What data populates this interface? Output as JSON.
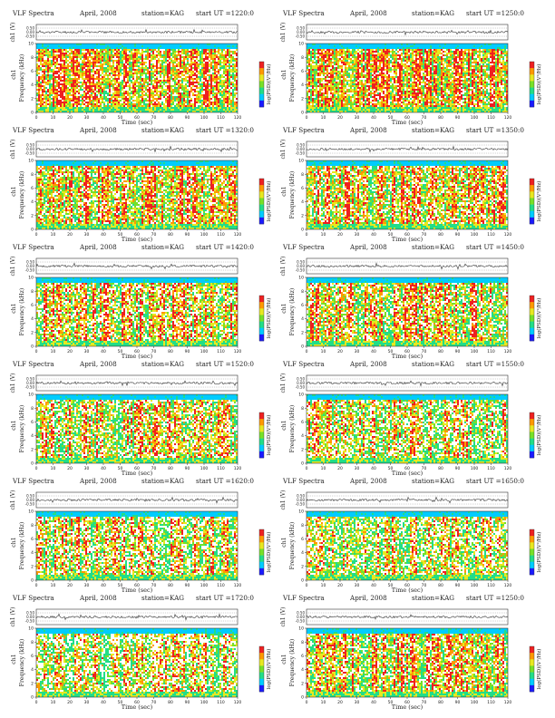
{
  "panel_header": {
    "title": "VLF Spectra",
    "date": "April, 2008",
    "station": "station=KAG",
    "start_prefix": "start UT ="
  },
  "labels": {
    "ch_axis": "ch1 (V)",
    "freq_axis": "Frequency (kHz)",
    "freq_axis_prefix": "ch1",
    "time_axis": "Time (sec)",
    "colorbar": "log(PSD)(V²/Hz)"
  },
  "colors": {
    "colormap": [
      "#1a1aff",
      "#00ccff",
      "#22dd88",
      "#77e028",
      "#e8e820",
      "#ff9900",
      "#ee2020"
    ],
    "background": "#ffffff",
    "trace": "#333333"
  },
  "chart_data": [
    {
      "type": "heatmap",
      "start_ut": "1220:0",
      "x_ticks": [
        0,
        10,
        20,
        30,
        40,
        50,
        60,
        70,
        80,
        90,
        100,
        110,
        120
      ],
      "xlim": [
        0,
        120
      ],
      "y_ticks": [
        0,
        2,
        4,
        6,
        8,
        10
      ],
      "ylim": [
        0,
        10
      ],
      "ch_ticks": [
        "0.50",
        "0.00",
        "-0.50"
      ],
      "ch_ylim": [
        -0.5,
        0.5
      ],
      "mean_intensity": 0.78,
      "density": 0.8
    },
    {
      "type": "heatmap",
      "start_ut": "1250:0",
      "x_ticks": [
        0,
        10,
        20,
        30,
        40,
        50,
        60,
        70,
        80,
        90,
        100,
        110,
        120
      ],
      "xlim": [
        0,
        120
      ],
      "y_ticks": [
        0,
        2,
        4,
        6,
        8,
        10
      ],
      "ylim": [
        0,
        10
      ],
      "ch_ticks": [
        "0.50",
        "0.00",
        "-0.50"
      ],
      "ch_ylim": [
        -0.5,
        0.5
      ],
      "mean_intensity": 0.77,
      "density": 0.82
    },
    {
      "type": "heatmap",
      "start_ut": "1320:0",
      "x_ticks": [
        0,
        10,
        20,
        30,
        40,
        50,
        60,
        70,
        80,
        90,
        100,
        110,
        120
      ],
      "xlim": [
        0,
        120
      ],
      "y_ticks": [
        0,
        2,
        4,
        6,
        8,
        10
      ],
      "ylim": [
        0,
        10
      ],
      "ch_ticks": [
        "0.50",
        "0.00",
        "-0.50"
      ],
      "ch_ylim": [
        -0.5,
        0.5
      ],
      "mean_intensity": 0.72,
      "density": 0.78
    },
    {
      "type": "heatmap",
      "start_ut": "1350:0",
      "x_ticks": [
        0,
        10,
        20,
        30,
        40,
        50,
        60,
        70,
        80,
        90,
        100,
        110,
        120
      ],
      "xlim": [
        0,
        120
      ],
      "y_ticks": [
        0,
        2,
        4,
        6,
        8,
        10
      ],
      "ylim": [
        0,
        10
      ],
      "ch_ticks": [
        "0.50",
        "0.00",
        "-0.50"
      ],
      "ch_ylim": [
        -0.5,
        0.5
      ],
      "mean_intensity": 0.7,
      "density": 0.76
    },
    {
      "type": "heatmap",
      "start_ut": "1420:0",
      "x_ticks": [
        0,
        10,
        20,
        30,
        40,
        50,
        60,
        70,
        80,
        90,
        100,
        110,
        120
      ],
      "xlim": [
        0,
        120
      ],
      "y_ticks": [
        0,
        2,
        4,
        6,
        8,
        10
      ],
      "ylim": [
        0,
        10
      ],
      "ch_ticks": [
        "0.50",
        "0.00",
        "-0.50"
      ],
      "ch_ylim": [
        -0.5,
        0.5
      ],
      "mean_intensity": 0.66,
      "density": 0.72
    },
    {
      "type": "heatmap",
      "start_ut": "1450:0",
      "x_ticks": [
        0,
        10,
        20,
        30,
        40,
        50,
        60,
        70,
        80,
        90,
        100,
        110,
        120
      ],
      "xlim": [
        0,
        120
      ],
      "y_ticks": [
        0,
        2,
        4,
        6,
        8,
        10
      ],
      "ylim": [
        0,
        10
      ],
      "ch_ticks": [
        "0.50",
        "0.00",
        "-0.50"
      ],
      "ch_ylim": [
        -0.5,
        0.5
      ],
      "mean_intensity": 0.68,
      "density": 0.75
    },
    {
      "type": "heatmap",
      "start_ut": "1520:0",
      "x_ticks": [
        0,
        10,
        20,
        30,
        40,
        50,
        60,
        70,
        80,
        90,
        100,
        110,
        120
      ],
      "xlim": [
        0,
        120
      ],
      "y_ticks": [
        0,
        2,
        4,
        6,
        8,
        10
      ],
      "ylim": [
        0,
        10
      ],
      "ch_ticks": [
        "0.50",
        "0.00",
        "-0.50"
      ],
      "ch_ylim": [
        -0.5,
        0.5
      ],
      "mean_intensity": 0.62,
      "density": 0.7
    },
    {
      "type": "heatmap",
      "start_ut": "1550:0",
      "x_ticks": [
        0,
        10,
        20,
        30,
        40,
        50,
        60,
        70,
        80,
        90,
        100,
        110,
        120
      ],
      "xlim": [
        0,
        120
      ],
      "y_ticks": [
        0,
        2,
        4,
        6,
        8,
        10
      ],
      "ylim": [
        0,
        10
      ],
      "ch_ticks": [
        "0.50",
        "0.00",
        "-0.50"
      ],
      "ch_ylim": [
        -0.5,
        0.5
      ],
      "mean_intensity": 0.58,
      "density": 0.68
    },
    {
      "type": "heatmap",
      "start_ut": "1620:0",
      "x_ticks": [
        0,
        10,
        20,
        30,
        40,
        50,
        60,
        70,
        80,
        90,
        100,
        110,
        120
      ],
      "xlim": [
        0,
        120
      ],
      "y_ticks": [
        0,
        2,
        4,
        6,
        8,
        10
      ],
      "ylim": [
        0,
        10
      ],
      "ch_ticks": [
        "0.50",
        "0.00",
        "-0.50"
      ],
      "ch_ylim": [
        -0.5,
        0.5
      ],
      "mean_intensity": 0.55,
      "density": 0.66
    },
    {
      "type": "heatmap",
      "start_ut": "1650:0",
      "x_ticks": [
        0,
        10,
        20,
        30,
        40,
        50,
        60,
        70,
        80,
        90,
        100,
        110,
        120
      ],
      "xlim": [
        0,
        120
      ],
      "y_ticks": [
        0,
        2,
        4,
        6,
        8,
        10
      ],
      "ylim": [
        0,
        10
      ],
      "ch_ticks": [
        "0.50",
        "0.00",
        "-0.50"
      ],
      "ch_ylim": [
        -0.5,
        0.5
      ],
      "mean_intensity": 0.55,
      "density": 0.66
    },
    {
      "type": "heatmap",
      "start_ut": "1720:0",
      "x_ticks": [
        0,
        10,
        20,
        30,
        40,
        50,
        60,
        70,
        80,
        90,
        100,
        110,
        120
      ],
      "xlim": [
        0,
        120
      ],
      "y_ticks": [
        0,
        2,
        4,
        6,
        8,
        10
      ],
      "ylim": [
        0,
        10
      ],
      "ch_ticks": [
        "0.50",
        "0.00",
        "-0.50"
      ],
      "ch_ylim": [
        -0.5,
        0.5
      ],
      "mean_intensity": 0.48,
      "density": 0.62
    },
    {
      "type": "heatmap",
      "start_ut": "1250:0",
      "x_ticks": [
        0,
        10,
        20,
        30,
        40,
        50,
        60,
        70,
        80,
        90,
        100,
        110,
        120
      ],
      "xlim": [
        0,
        120
      ],
      "y_ticks": [
        0,
        2,
        4,
        6,
        8,
        10
      ],
      "ylim": [
        0,
        10
      ],
      "ch_ticks": [
        "0.50",
        "0.00",
        "-0.50"
      ],
      "ch_ylim": [
        -0.5,
        0.5
      ],
      "mean_intensity": 0.7,
      "density": 0.76
    }
  ]
}
